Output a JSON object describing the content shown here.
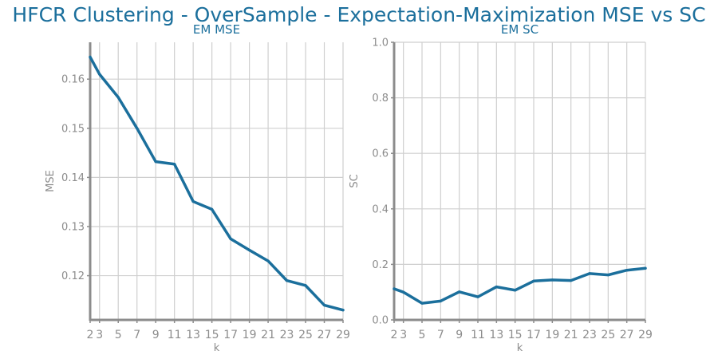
{
  "figure": {
    "title": "HFCR Clustering - OverSample - Expectation-Maximization MSE vs SC"
  },
  "colors": {
    "line": "#1b6f9c",
    "grid": "#cfcfcf",
    "axis": "#8c8c8c",
    "text": "#8c8c8c",
    "title": "#1b6f9c"
  },
  "chart_data": [
    {
      "type": "line",
      "title": "EM MSE",
      "xlabel": "k",
      "ylabel": "MSE",
      "xlim": [
        2,
        29
      ],
      "ylim": [
        0.111,
        0.1675
      ],
      "x_ticks": [
        2,
        3,
        5,
        7,
        9,
        11,
        13,
        15,
        17,
        19,
        21,
        23,
        25,
        27,
        29
      ],
      "y_ticks": [
        0.12,
        0.13,
        0.14,
        0.15,
        0.16
      ],
      "grid": true,
      "series": [
        {
          "x": [
            2,
            3,
            5,
            7,
            9,
            11,
            13,
            15,
            17,
            19,
            21,
            23,
            25,
            27,
            29
          ],
          "y": [
            0.1645,
            0.161,
            0.1563,
            0.15,
            0.1432,
            0.1427,
            0.1351,
            0.1335,
            0.1275,
            0.1252,
            0.123,
            0.119,
            0.118,
            0.114,
            0.113
          ]
        }
      ]
    },
    {
      "type": "line",
      "title": "EM SC",
      "xlabel": "k",
      "ylabel": "SC",
      "xlim": [
        2,
        29
      ],
      "ylim": [
        0,
        1.0
      ],
      "x_ticks": [
        2,
        3,
        5,
        7,
        9,
        11,
        13,
        15,
        17,
        19,
        21,
        23,
        25,
        27,
        29
      ],
      "y_ticks": [
        0.0,
        0.2,
        0.4,
        0.6,
        0.8,
        1.0
      ],
      "grid": true,
      "series": [
        {
          "x": [
            2,
            3,
            5,
            7,
            9,
            11,
            13,
            15,
            17,
            19,
            21,
            23,
            25,
            27,
            29
          ],
          "y": [
            0.112,
            0.1,
            0.06,
            0.068,
            0.101,
            0.083,
            0.119,
            0.107,
            0.14,
            0.144,
            0.142,
            0.167,
            0.162,
            0.179,
            0.186
          ]
        }
      ]
    }
  ]
}
